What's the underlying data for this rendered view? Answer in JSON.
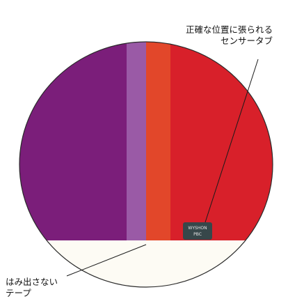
{
  "callouts": {
    "sensor_tab": {
      "line1": "正確な位置に張られる",
      "line2": "センサータブ"
    },
    "tape": {
      "line1": "はみ出さない",
      "line2": "テープ"
    }
  },
  "sensor_tab_label": {
    "line1": "WYSHON",
    "line2": "PBC"
  },
  "colors": {
    "purple": "#7b1e7a",
    "light_purple": "#9a5aa6",
    "orange_red": "#e2472a",
    "red": "#d8202a",
    "tape_white": "#fdfbf4",
    "tab_dark": "#37474a",
    "outline": "#2a2a2a"
  }
}
